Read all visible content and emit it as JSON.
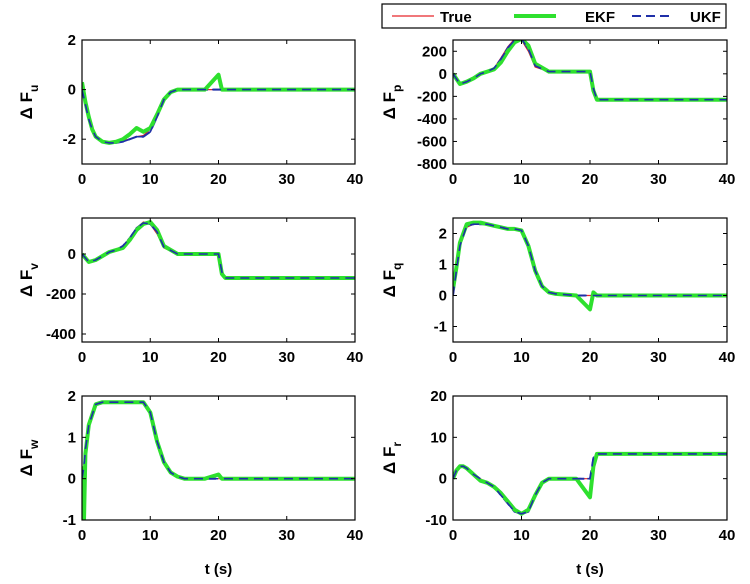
{
  "legend": [
    {
      "label": "True",
      "color": "#e8262b",
      "dash": "",
      "width": 1.2
    },
    {
      "label": "EKF",
      "color": "#2ee02e",
      "dash": "",
      "width": 4
    },
    {
      "label": "UKF",
      "color": "#1f2fa8",
      "dash": "9,5",
      "width": 2
    }
  ],
  "chart_data": [
    {
      "type": "line",
      "ylabel_main": "Δ F",
      "ylabel_sub": "u",
      "xlim": [
        0,
        40
      ],
      "ylim": [
        -3,
        2
      ],
      "xticks": [
        0,
        10,
        20,
        30,
        40
      ],
      "yticks": [
        2,
        0,
        -2
      ],
      "xlabel": "",
      "x": [
        0,
        0.5,
        1,
        1.5,
        2,
        3,
        4,
        5,
        6,
        7,
        8,
        9,
        10,
        11,
        12,
        13,
        14,
        15,
        18,
        20,
        20.5,
        21,
        25,
        30,
        35,
        40
      ],
      "series": [
        {
          "name": "True",
          "values": [
            0,
            -0.6,
            -1.2,
            -1.6,
            -1.9,
            -2.1,
            -2.1,
            -2.1,
            -2.05,
            -2.0,
            -1.9,
            -1.85,
            -1.6,
            -1.0,
            -0.4,
            -0.1,
            0,
            0,
            0,
            0,
            0,
            0,
            0,
            0,
            0,
            0
          ]
        },
        {
          "name": "EKF",
          "values": [
            0.3,
            -0.5,
            -1.1,
            -1.6,
            -1.9,
            -2.1,
            -2.15,
            -2.1,
            -2.0,
            -1.8,
            -1.55,
            -1.7,
            -1.55,
            -1.0,
            -0.4,
            -0.1,
            0,
            0,
            0,
            0.6,
            0,
            0,
            0,
            0,
            0,
            0
          ]
        },
        {
          "name": "UKF",
          "values": [
            0,
            -0.6,
            -1.2,
            -1.6,
            -1.9,
            -2.1,
            -2.15,
            -2.15,
            -2.1,
            -2.0,
            -1.9,
            -1.9,
            -1.7,
            -1.1,
            -0.4,
            -0.1,
            0,
            0,
            0,
            0,
            0,
            0,
            0,
            0,
            0,
            0
          ]
        }
      ]
    },
    {
      "type": "line",
      "ylabel_main": "Δ F",
      "ylabel_sub": "p",
      "xlim": [
        0,
        40
      ],
      "ylim": [
        -800,
        300
      ],
      "xticks": [
        0,
        10,
        20,
        30,
        40
      ],
      "yticks": [
        200,
        0,
        -200,
        -400,
        -600,
        -800
      ],
      "xlabel": "",
      "x": [
        0,
        1,
        2,
        3,
        4,
        5,
        6,
        7,
        8,
        9,
        10,
        11,
        12,
        14,
        16,
        18,
        20,
        20.5,
        21,
        25,
        30,
        35,
        40
      ],
      "series": [
        {
          "name": "True",
          "values": [
            0,
            -100,
            -70,
            -40,
            0,
            20,
            50,
            140,
            240,
            310,
            300,
            200,
            60,
            20,
            20,
            20,
            20,
            -120,
            -230,
            -230,
            -230,
            -230,
            -230
          ]
        },
        {
          "name": "EKF",
          "values": [
            0,
            -90,
            -70,
            -40,
            0,
            20,
            40,
            100,
            200,
            280,
            310,
            250,
            90,
            20,
            20,
            20,
            20,
            -150,
            -230,
            -230,
            -230,
            -230,
            -230
          ]
        },
        {
          "name": "UKF",
          "values": [
            0,
            -90,
            -70,
            -40,
            0,
            20,
            50,
            130,
            230,
            300,
            310,
            220,
            70,
            20,
            20,
            20,
            20,
            -130,
            -230,
            -230,
            -230,
            -230,
            -230
          ]
        }
      ]
    },
    {
      "type": "line",
      "ylabel_main": "Δ F",
      "ylabel_sub": "v",
      "xlim": [
        0,
        40
      ],
      "ylim": [
        -440,
        180
      ],
      "xticks": [
        0,
        10,
        20,
        30,
        40
      ],
      "yticks": [
        0,
        -200,
        -400
      ],
      "xlabel": "",
      "x": [
        0,
        1,
        2,
        3,
        4,
        5,
        6,
        7,
        8,
        9,
        10,
        11,
        12,
        14,
        16,
        18,
        20,
        20.5,
        21,
        25,
        30,
        35,
        40
      ],
      "series": [
        {
          "name": "True",
          "values": [
            0,
            -40,
            -30,
            -10,
            10,
            20,
            40,
            80,
            130,
            160,
            150,
            100,
            30,
            0,
            0,
            0,
            0,
            -80,
            -120,
            -120,
            -120,
            -120,
            -120
          ]
        },
        {
          "name": "EKF",
          "values": [
            0,
            -40,
            -30,
            -10,
            10,
            20,
            30,
            70,
            120,
            150,
            160,
            120,
            40,
            0,
            0,
            0,
            0,
            -100,
            -120,
            -120,
            -120,
            -120,
            -120
          ]
        },
        {
          "name": "UKF",
          "values": [
            0,
            -40,
            -30,
            -10,
            10,
            20,
            40,
            80,
            130,
            155,
            150,
            110,
            35,
            0,
            0,
            0,
            0,
            -90,
            -120,
            -120,
            -120,
            -120,
            -120
          ]
        }
      ]
    },
    {
      "type": "line",
      "ylabel_main": "Δ F",
      "ylabel_sub": "q",
      "xlim": [
        0,
        40
      ],
      "ylim": [
        -1.5,
        2.5
      ],
      "xticks": [
        0,
        10,
        20,
        30,
        40
      ],
      "yticks": [
        2,
        1,
        0,
        -1
      ],
      "xlabel": "",
      "x": [
        0,
        0.5,
        1,
        2,
        3,
        4,
        5,
        6,
        7,
        8,
        9,
        10,
        11,
        12,
        13,
        14,
        15,
        18,
        20,
        20.5,
        21,
        25,
        30,
        35,
        40
      ],
      "series": [
        {
          "name": "True",
          "values": [
            0,
            0.8,
            1.6,
            2.2,
            2.3,
            2.3,
            2.3,
            2.25,
            2.2,
            2.15,
            2.15,
            2.1,
            1.6,
            0.8,
            0.3,
            0.1,
            0.05,
            0,
            0,
            0,
            0,
            0,
            0,
            0,
            0
          ]
        },
        {
          "name": "EKF",
          "values": [
            0.2,
            0.9,
            1.7,
            2.3,
            2.35,
            2.35,
            2.3,
            2.25,
            2.2,
            2.15,
            2.15,
            2.1,
            1.6,
            0.8,
            0.3,
            0.1,
            0.05,
            0,
            -0.45,
            0.1,
            0,
            0,
            0,
            0,
            0
          ]
        },
        {
          "name": "UKF",
          "values": [
            0,
            0.8,
            1.6,
            2.25,
            2.3,
            2.3,
            2.3,
            2.25,
            2.2,
            2.15,
            2.15,
            2.1,
            1.6,
            0.8,
            0.3,
            0.1,
            0.05,
            0,
            0,
            0,
            0,
            0,
            0,
            0,
            0
          ]
        }
      ]
    },
    {
      "type": "line",
      "ylabel_main": "Δ F",
      "ylabel_sub": "w",
      "xlim": [
        0,
        40
      ],
      "ylim": [
        -1,
        2
      ],
      "xticks": [
        0,
        10,
        20,
        30,
        40
      ],
      "yticks": [
        2,
        1,
        0,
        -1
      ],
      "xlabel": "t (s)",
      "x": [
        0,
        0.3,
        0.5,
        1,
        2,
        3,
        4,
        5,
        6,
        7,
        8,
        9,
        10,
        11,
        12,
        13,
        14,
        15,
        18,
        20,
        20.5,
        21,
        25,
        30,
        35,
        40
      ],
      "series": [
        {
          "name": "True",
          "values": [
            0,
            0.3,
            0.7,
            1.3,
            1.8,
            1.85,
            1.85,
            1.85,
            1.85,
            1.85,
            1.85,
            1.85,
            1.6,
            0.9,
            0.4,
            0.15,
            0.05,
            0,
            0,
            0,
            0,
            0,
            0,
            0,
            0,
            0
          ]
        },
        {
          "name": "EKF",
          "values": [
            0.3,
            -1.0,
            0.6,
            1.3,
            1.8,
            1.85,
            1.85,
            1.85,
            1.85,
            1.85,
            1.85,
            1.85,
            1.6,
            0.9,
            0.4,
            0.15,
            0.05,
            0,
            0,
            0.1,
            0,
            0,
            0,
            0,
            0,
            0
          ]
        },
        {
          "name": "UKF",
          "values": [
            0,
            0.3,
            0.7,
            1.3,
            1.8,
            1.85,
            1.85,
            1.85,
            1.85,
            1.85,
            1.85,
            1.85,
            1.6,
            0.9,
            0.4,
            0.15,
            0.05,
            0,
            0,
            0,
            0,
            0,
            0,
            0,
            0,
            0
          ]
        }
      ]
    },
    {
      "type": "line",
      "ylabel_main": "Δ F",
      "ylabel_sub": "r",
      "xlim": [
        0,
        40
      ],
      "ylim": [
        -10,
        20
      ],
      "xticks": [
        0,
        10,
        20,
        30,
        40
      ],
      "yticks": [
        20,
        10,
        0,
        -10
      ],
      "xlabel": "t (s)",
      "x": [
        0,
        0.5,
        1,
        1.5,
        2,
        3,
        4,
        5,
        6,
        7,
        8,
        9,
        10,
        11,
        12,
        13,
        14,
        16,
        18,
        20,
        20.5,
        21,
        25,
        30,
        35,
        40
      ],
      "series": [
        {
          "name": "True",
          "values": [
            0,
            2,
            3,
            3,
            2.5,
            1,
            0,
            -1,
            -2,
            -4,
            -6,
            -8,
            -8.5,
            -8,
            -4,
            -1,
            0,
            0,
            0,
            0,
            4,
            6,
            6,
            6,
            6,
            6
          ]
        },
        {
          "name": "EKF",
          "values": [
            0,
            2,
            3,
            3,
            2.5,
            1,
            -0.5,
            -1,
            -2,
            -3.5,
            -5.5,
            -7.5,
            -8.5,
            -7.5,
            -4,
            -1,
            0,
            0,
            0,
            -4.5,
            3,
            6,
            6,
            6,
            6,
            6
          ]
        },
        {
          "name": "UKF",
          "values": [
            0,
            2,
            3,
            3,
            2.5,
            1,
            0,
            -1,
            -2,
            -4,
            -6,
            -8,
            -8.5,
            -8,
            -4,
            -1,
            0,
            0,
            0,
            0,
            5,
            6,
            6,
            6,
            6,
            6
          ]
        }
      ]
    }
  ]
}
